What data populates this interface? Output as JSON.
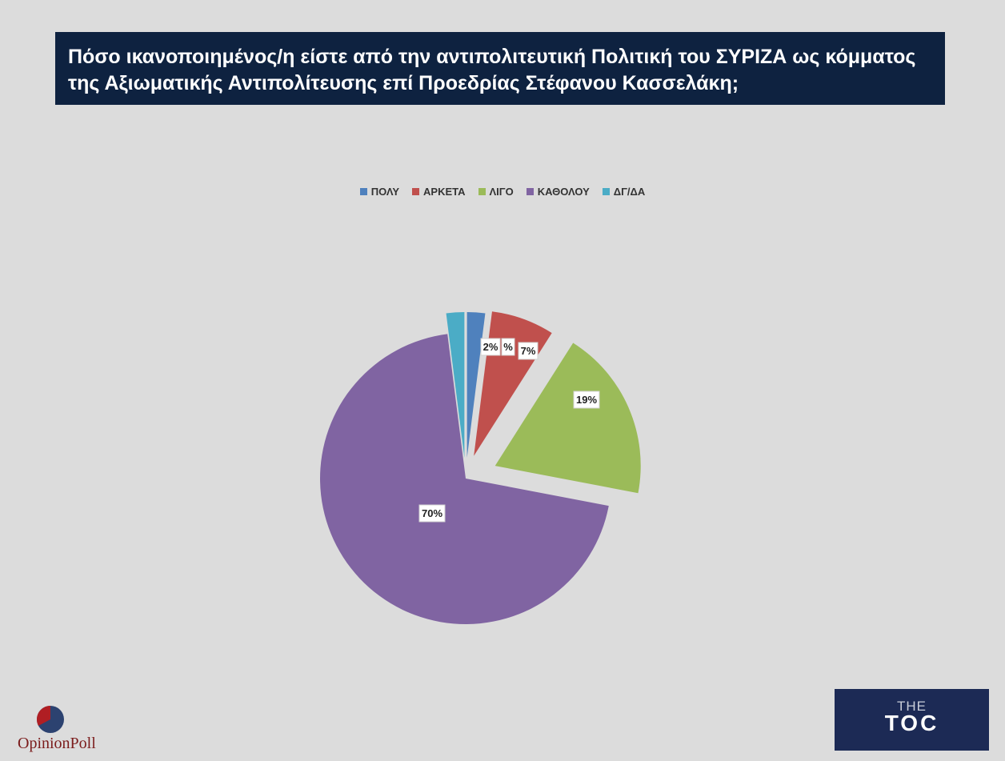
{
  "title": "Πόσο ικανοποιημένος/η είστε από την αντιπολιτευτική Πολιτική του ΣΥΡΙΖΑ ως κόμματος της Αξιωματικής Αντιπολίτευσης επί Προεδρίας Στέφανου Κασσελάκη;",
  "chart_data": {
    "type": "pie",
    "exploded": true,
    "legend_position": "top",
    "categories": [
      "ΠΟΛΥ",
      "ΑΡΚΕΤΑ",
      "ΛΙΓΟ",
      "ΚΑΘΟΛΟΥ",
      "ΔΓ/ΔΑ"
    ],
    "values": [
      2,
      7,
      19,
      70,
      2
    ],
    "data_labels": [
      "%",
      "7%",
      "19%",
      "70%",
      "2%"
    ],
    "colors": [
      "#4f81bd",
      "#c0504d",
      "#9bbb59",
      "#8064a2",
      "#4bacc6"
    ]
  },
  "logos": {
    "left": "OpinionPoll",
    "right_top": "THE",
    "right_main": "TOC"
  }
}
